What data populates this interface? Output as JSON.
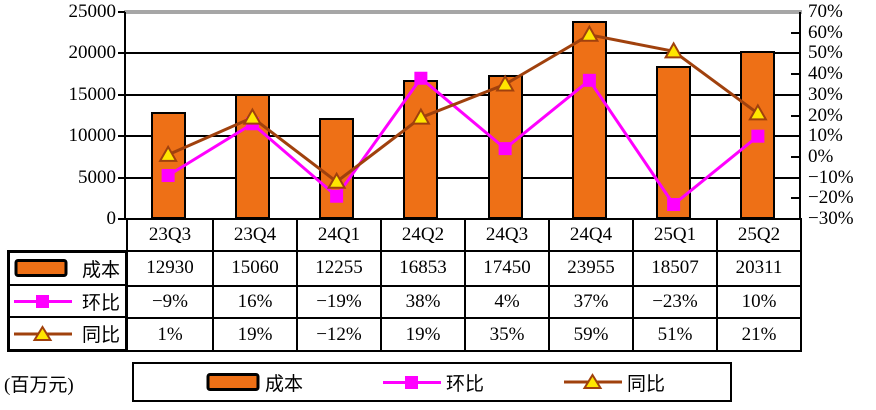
{
  "unit_label": "(百万元)",
  "colors": {
    "bar": "#EE7016",
    "bar_border": "#000000",
    "qoq_line": "#FF00FF",
    "yoy_line": "#A0410D",
    "yoy_marker_fill": "#FFE600",
    "gridline": "#000000",
    "frame_top": "#A6A6A6"
  },
  "chart_data": {
    "type": "combo-bar-line",
    "categories": [
      "23Q3",
      "23Q4",
      "24Q1",
      "24Q2",
      "24Q3",
      "24Q4",
      "25Q1",
      "25Q2"
    ],
    "series": [
      {
        "name": "成本",
        "type": "bar",
        "axis": "left",
        "color": "#EE7016",
        "values": [
          12930,
          15060,
          12255,
          16853,
          17450,
          23955,
          18507,
          20311
        ]
      },
      {
        "name": "环比",
        "type": "line",
        "axis": "right",
        "marker": "square",
        "color": "#FF00FF",
        "unit": "%",
        "values": [
          -9,
          16,
          -19,
          38,
          4,
          37,
          -23,
          10
        ]
      },
      {
        "name": "同比",
        "type": "line",
        "axis": "right",
        "marker": "triangle",
        "color": "#A0410D",
        "marker_fill": "#FFE600",
        "unit": "%",
        "values": [
          1,
          19,
          -12,
          19,
          35,
          59,
          51,
          21
        ]
      }
    ],
    "left_axis": {
      "min": 0,
      "max": 25000,
      "tick_step": 5000,
      "ticks": [
        25000,
        20000,
        15000,
        10000,
        5000,
        0
      ]
    },
    "right_axis": {
      "min": -30,
      "max": 70,
      "tick_step": 10,
      "tick_labels": [
        "70%",
        "60%",
        "50%",
        "40%",
        "30%",
        "20%",
        "10%",
        "0%",
        "−10%",
        "−20%",
        "−30%"
      ]
    },
    "gridlines": true,
    "legend_position": "bottom",
    "title": ""
  },
  "table": {
    "row_labels": [
      "成本",
      "环比",
      "同比"
    ],
    "header": [
      "23Q3",
      "23Q4",
      "24Q1",
      "24Q2",
      "24Q3",
      "24Q4",
      "25Q1",
      "25Q2"
    ],
    "rows": [
      [
        "12930",
        "15060",
        "12255",
        "16853",
        "17450",
        "23955",
        "18507",
        "20311"
      ],
      [
        "−9%",
        "16%",
        "−19%",
        "38%",
        "4%",
        "37%",
        "−23%",
        "10%"
      ],
      [
        "1%",
        "19%",
        "−12%",
        "19%",
        "35%",
        "59%",
        "51%",
        "21%"
      ]
    ]
  },
  "legend": {
    "items": [
      {
        "label": "成本",
        "swatch": "bar"
      },
      {
        "label": "环比",
        "swatch": "line-square"
      },
      {
        "label": "同比",
        "swatch": "line-triangle"
      }
    ]
  }
}
